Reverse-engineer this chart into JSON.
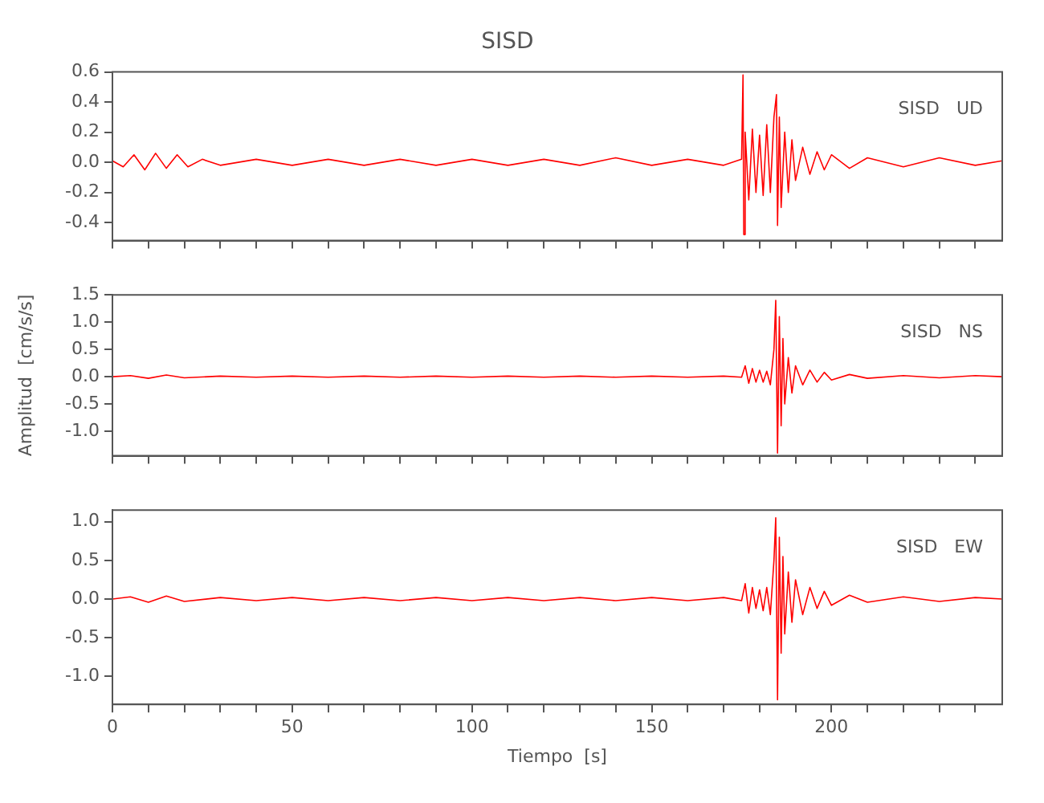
{
  "chart_data": [
    {
      "type": "line",
      "title": "SISD",
      "marker": "none",
      "tick_labels": "y",
      "annotations": [
        "SISD   UD"
      ],
      "xlim": [
        0,
        247.5
      ],
      "xticks": [
        0,
        {
          "value": 10,
          "label": null
        },
        {
          "value": 20,
          "label": null
        },
        {
          "value": 30,
          "label": null
        },
        {
          "value": 40,
          "label": null
        },
        50,
        {
          "value": 60,
          "label": null
        },
        {
          "value": 70,
          "label": null
        },
        {
          "value": 80,
          "label": null
        },
        {
          "value": 90,
          "label": null
        },
        100,
        {
          "value": 110,
          "label": null
        },
        {
          "value": 120,
          "label": null
        },
        {
          "value": 130,
          "label": null
        },
        {
          "value": 140,
          "label": null
        },
        150,
        {
          "value": 160,
          "label": null
        },
        {
          "value": 170,
          "label": null
        },
        {
          "value": 180,
          "label": null
        },
        {
          "value": 190,
          "label": null
        },
        200,
        {
          "value": 210,
          "label": null
        },
        {
          "value": 220,
          "label": null
        },
        {
          "value": 230,
          "label": null
        },
        {
          "value": 240,
          "label": null
        }
      ],
      "ylim": [
        -0.52,
        0.6
      ],
      "yticks": [
        -0.4,
        -0.2,
        {
          "value": 0,
          "label": "0.0"
        },
        0.2,
        0.4,
        0.6
      ],
      "series": [
        {
          "color": "#ff0000",
          "x": [
            0,
            3,
            6,
            9,
            12,
            15,
            18,
            21,
            25,
            30,
            40,
            50,
            60,
            70,
            80,
            90,
            100,
            110,
            120,
            130,
            140,
            150,
            160,
            170,
            175,
            175.4,
            175.6,
            176,
            177,
            178,
            179,
            180,
            181,
            182,
            183,
            184,
            184.7,
            185,
            185.5,
            186,
            187,
            188,
            189,
            190,
            192,
            194,
            196,
            198,
            200,
            205,
            210,
            220,
            230,
            240,
            247.5
          ],
          "values": [
            0.01,
            -0.03,
            0.05,
            -0.05,
            0.06,
            -0.04,
            0.05,
            -0.03,
            0.02,
            -0.02,
            0.02,
            -0.02,
            0.02,
            -0.02,
            0.02,
            -0.02,
            0.02,
            -0.02,
            0.02,
            -0.02,
            0.03,
            -0.02,
            0.02,
            -0.02,
            0.02,
            0.58,
            -0.48,
            0.2,
            -0.25,
            0.22,
            -0.2,
            0.18,
            -0.22,
            0.25,
            -0.2,
            0.3,
            0.45,
            -0.42,
            0.3,
            -0.3,
            0.2,
            -0.2,
            0.15,
            -0.12,
            0.1,
            -0.08,
            0.07,
            -0.05,
            0.05,
            -0.04,
            0.03,
            -0.03,
            0.03,
            -0.02,
            0.01
          ]
        }
      ]
    },
    {
      "type": "line",
      "ylabel": "Amplitud  [cm/s/s]",
      "marker": "none",
      "tick_labels": "y",
      "annotations": [
        "SISD   NS"
      ],
      "xlim": [
        0,
        247.5
      ],
      "xticks": [
        0,
        {
          "value": 10,
          "label": null
        },
        {
          "value": 20,
          "label": null
        },
        {
          "value": 30,
          "label": null
        },
        {
          "value": 40,
          "label": null
        },
        50,
        {
          "value": 60,
          "label": null
        },
        {
          "value": 70,
          "label": null
        },
        {
          "value": 80,
          "label": null
        },
        {
          "value": 90,
          "label": null
        },
        100,
        {
          "value": 110,
          "label": null
        },
        {
          "value": 120,
          "label": null
        },
        {
          "value": 130,
          "label": null
        },
        {
          "value": 140,
          "label": null
        },
        150,
        {
          "value": 160,
          "label": null
        },
        {
          "value": 170,
          "label": null
        },
        {
          "value": 180,
          "label": null
        },
        {
          "value": 190,
          "label": null
        },
        200,
        {
          "value": 210,
          "label": null
        },
        {
          "value": 220,
          "label": null
        },
        {
          "value": 230,
          "label": null
        },
        {
          "value": 240,
          "label": null
        }
      ],
      "ylim": [
        -1.45,
        1.5
      ],
      "yticks": [
        {
          "value": -1,
          "label": "-1.0"
        },
        -0.5,
        {
          "value": 0,
          "label": "0.0"
        },
        0.5,
        {
          "value": 1,
          "label": "1.0"
        },
        1.5
      ],
      "series": [
        {
          "color": "#ff0000",
          "x": [
            0,
            5,
            10,
            15,
            20,
            30,
            40,
            50,
            60,
            70,
            80,
            90,
            100,
            110,
            120,
            130,
            140,
            150,
            160,
            170,
            175,
            176,
            177,
            178,
            179,
            180,
            181,
            182,
            183,
            184,
            184.5,
            185,
            185.5,
            186,
            186.5,
            187,
            188,
            189,
            190,
            192,
            194,
            196,
            198,
            200,
            205,
            210,
            220,
            230,
            240,
            247.5
          ],
          "values": [
            0,
            0.02,
            -0.03,
            0.03,
            -0.02,
            0.01,
            -0.01,
            0.01,
            -0.01,
            0.01,
            -0.01,
            0.01,
            -0.01,
            0.01,
            -0.01,
            0.01,
            -0.01,
            0.01,
            -0.01,
            0.01,
            -0.01,
            0.2,
            -0.12,
            0.15,
            -0.1,
            0.12,
            -0.1,
            0.1,
            -0.15,
            0.5,
            1.4,
            -1.4,
            1.1,
            -0.9,
            0.7,
            -0.5,
            0.35,
            -0.3,
            0.2,
            -0.15,
            0.12,
            -0.1,
            0.08,
            -0.06,
            0.04,
            -0.03,
            0.02,
            -0.02,
            0.02,
            0
          ]
        }
      ]
    },
    {
      "type": "line",
      "xlabel": "Tiempo  [s]",
      "marker": "none",
      "annotations": [
        "SISD   EW"
      ],
      "xlim": [
        0,
        247.5
      ],
      "xticks": [
        0,
        {
          "value": 10,
          "label": null
        },
        {
          "value": 20,
          "label": null
        },
        {
          "value": 30,
          "label": null
        },
        {
          "value": 40,
          "label": null
        },
        50,
        {
          "value": 60,
          "label": null
        },
        {
          "value": 70,
          "label": null
        },
        {
          "value": 80,
          "label": null
        },
        {
          "value": 90,
          "label": null
        },
        100,
        {
          "value": 110,
          "label": null
        },
        {
          "value": 120,
          "label": null
        },
        {
          "value": 130,
          "label": null
        },
        {
          "value": 140,
          "label": null
        },
        150,
        {
          "value": 160,
          "label": null
        },
        {
          "value": 170,
          "label": null
        },
        {
          "value": 180,
          "label": null
        },
        {
          "value": 190,
          "label": null
        },
        200,
        {
          "value": 210,
          "label": null
        },
        {
          "value": 220,
          "label": null
        },
        {
          "value": 230,
          "label": null
        },
        {
          "value": 240,
          "label": null
        }
      ],
      "ylim": [
        -1.36,
        1.15
      ],
      "yticks": [
        {
          "value": -1,
          "label": "-1.0"
        },
        -0.5,
        {
          "value": 0,
          "label": "0.0"
        },
        0.5,
        {
          "value": 1,
          "label": "1.0"
        }
      ],
      "series": [
        {
          "color": "#ff0000",
          "x": [
            0,
            5,
            10,
            15,
            20,
            30,
            40,
            50,
            60,
            70,
            80,
            90,
            100,
            110,
            120,
            130,
            140,
            150,
            160,
            170,
            175,
            176,
            177,
            178,
            179,
            180,
            181,
            182,
            183,
            184,
            184.5,
            185,
            185.5,
            186,
            186.5,
            187,
            188,
            189,
            190,
            192,
            194,
            196,
            198,
            200,
            205,
            210,
            220,
            230,
            240,
            247.5
          ],
          "values": [
            0,
            0.03,
            -0.04,
            0.04,
            -0.03,
            0.02,
            -0.02,
            0.02,
            -0.02,
            0.02,
            -0.02,
            0.02,
            -0.02,
            0.02,
            -0.02,
            0.02,
            -0.02,
            0.02,
            -0.02,
            0.02,
            -0.02,
            0.2,
            -0.18,
            0.15,
            -0.12,
            0.12,
            -0.15,
            0.15,
            -0.2,
            0.5,
            1.05,
            -1.3,
            0.8,
            -0.7,
            0.55,
            -0.45,
            0.35,
            -0.3,
            0.25,
            -0.2,
            0.15,
            -0.12,
            0.1,
            -0.08,
            0.05,
            -0.04,
            0.03,
            -0.03,
            0.02,
            0
          ]
        }
      ]
    }
  ]
}
